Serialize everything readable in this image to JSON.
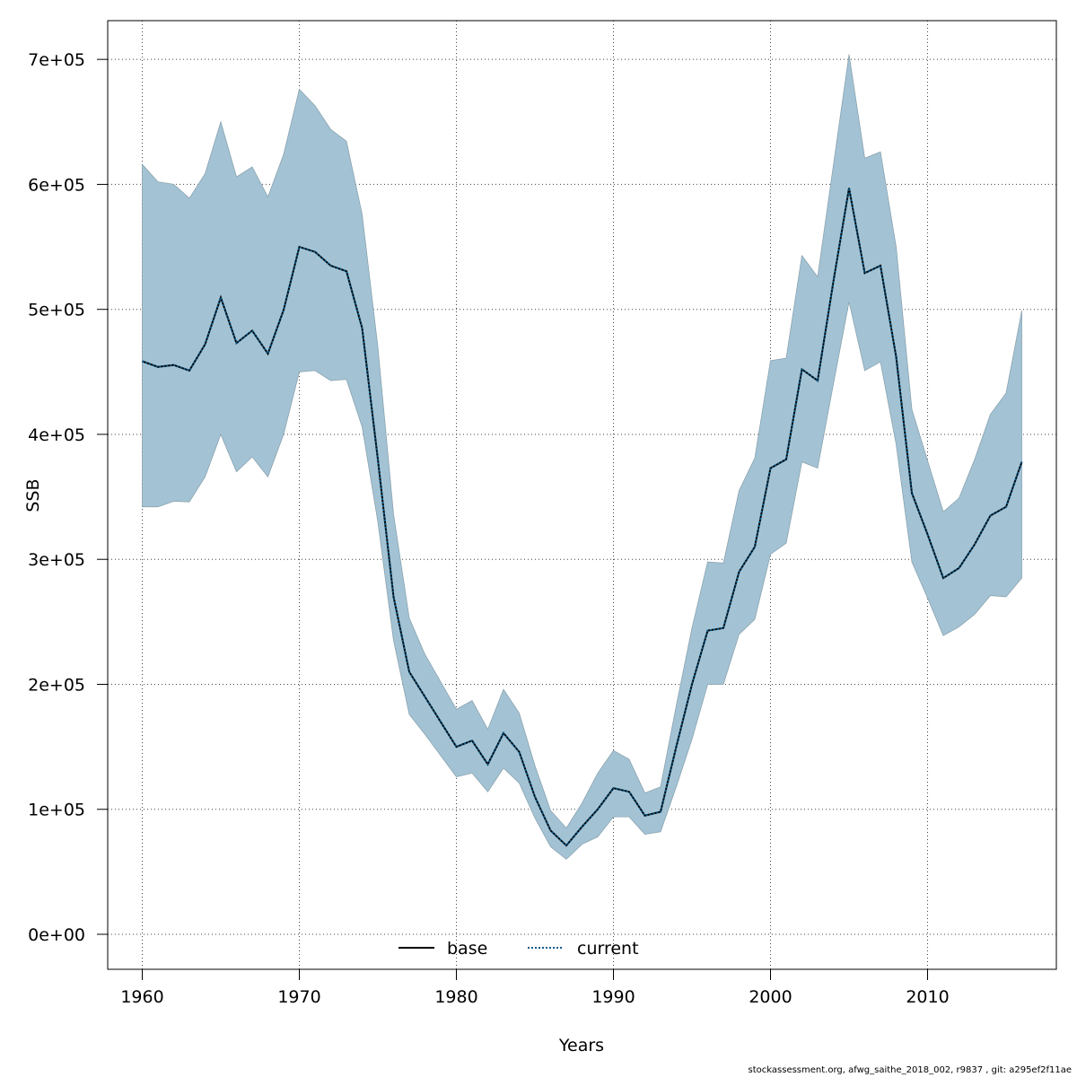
{
  "chart_data": {
    "type": "area",
    "xlabel": "Years",
    "ylabel": "SSB",
    "xlim": [
      1957.8,
      2018.2
    ],
    "ylim": [
      -28000,
      731000
    ],
    "x_ticks": [
      1960,
      1970,
      1980,
      1990,
      2000,
      2010
    ],
    "x_tick_labels": [
      "1960",
      "1970",
      "1980",
      "1990",
      "2000",
      "2010"
    ],
    "y_ticks": [
      0,
      100000,
      200000,
      300000,
      400000,
      500000,
      600000,
      700000
    ],
    "y_tick_labels": [
      "0e+00",
      "1e+05",
      "2e+05",
      "3e+05",
      "4e+05",
      "5e+05",
      "6e+05",
      "7e+05"
    ],
    "grid": true,
    "legend_position": "bottom-center",
    "colors": {
      "band": "#a3c3d4",
      "band_edge": "#8aa3b0",
      "base": "#000000",
      "current": "#0a5a8a",
      "grid": "#444444"
    },
    "x": [
      1960,
      1961,
      1962,
      1963,
      1964,
      1965,
      1966,
      1967,
      1968,
      1969,
      1970,
      1971,
      1972,
      1973,
      1974,
      1975,
      1976,
      1977,
      1978,
      1979,
      1980,
      1981,
      1982,
      1983,
      1984,
      1985,
      1986,
      1987,
      1988,
      1989,
      1990,
      1991,
      1992,
      1993,
      1994,
      1995,
      1996,
      1997,
      1998,
      1999,
      2000,
      2001,
      2002,
      2003,
      2004,
      2005,
      2006,
      2007,
      2008,
      2009,
      2010,
      2011,
      2012,
      2013,
      2014,
      2015,
      2016
    ],
    "series": [
      {
        "name": "base",
        "style": "solid",
        "values": [
          458500,
          454000,
          455500,
          451000,
          472000,
          509500,
          473000,
          483000,
          464500,
          499500,
          550000,
          546000,
          535000,
          530500,
          485000,
          380000,
          270000,
          210000,
          190000,
          170000,
          150000,
          155000,
          136000,
          161000,
          146000,
          110000,
          83000,
          71000,
          86000,
          100000,
          117000,
          114000,
          95000,
          98000,
          150000,
          200000,
          243000,
          245000,
          290000,
          310000,
          373000,
          380000,
          452000,
          443000,
          522000,
          597000,
          529000,
          535000,
          462000,
          353000,
          320000,
          285000,
          293000,
          312000,
          335000,
          342000,
          378000
        ]
      },
      {
        "name": "current",
        "style": "dotted",
        "values": [
          458500,
          454000,
          455500,
          451000,
          472000,
          509500,
          473000,
          483000,
          464500,
          499500,
          550000,
          546000,
          535000,
          530500,
          485000,
          380000,
          270000,
          210000,
          190000,
          170000,
          150000,
          155000,
          136000,
          161000,
          146000,
          110000,
          83000,
          71000,
          86000,
          100000,
          117000,
          114000,
          95000,
          98000,
          150000,
          200000,
          243000,
          245000,
          290000,
          310000,
          373000,
          380000,
          452000,
          443000,
          522000,
          597000,
          529000,
          535000,
          462000,
          353000,
          320000,
          285000,
          293000,
          312000,
          335000,
          342000,
          378000
        ]
      }
    ],
    "band_upper": [
      616000,
      602000,
      600000,
      589000,
      608500,
      650000,
      606000,
      614000,
      590000,
      624000,
      676000,
      663000,
      644000,
      634500,
      576000,
      470000,
      336000,
      253000,
      224000,
      202000,
      180000,
      187000,
      164000,
      196000,
      177000,
      135000,
      99000,
      85000,
      105000,
      129000,
      147000,
      140000,
      113000,
      118000,
      183000,
      245000,
      298000,
      297000,
      355000,
      381000,
      459000,
      461000,
      543000,
      526000,
      615000,
      704000,
      621000,
      626000,
      550000,
      420000,
      379000,
      338000,
      349000,
      380000,
      416000,
      433000,
      499000
    ],
    "band_lower": [
      342000,
      342000,
      346500,
      346000,
      366000,
      400000,
      370000,
      382000,
      366000,
      400000,
      450000,
      451000,
      443000,
      444000,
      406000,
      330000,
      235000,
      176000,
      160000,
      143000,
      126000,
      129000,
      114000,
      133000,
      121000,
      93000,
      70000,
      60000,
      72000,
      78000,
      94000,
      94000,
      80000,
      82000,
      118000,
      156000,
      200000,
      200000,
      240000,
      252000,
      304000,
      313000,
      378000,
      373000,
      440000,
      506000,
      451000,
      458000,
      392000,
      298000,
      269000,
      239000,
      246000,
      256000,
      271000,
      270000,
      285000
    ]
  },
  "legend": {
    "base_label": "base",
    "current_label": "current"
  },
  "footer_text": "stockassessment.org, afwg_saithe_2018_002, r9837 , git: a295ef2f11ae"
}
